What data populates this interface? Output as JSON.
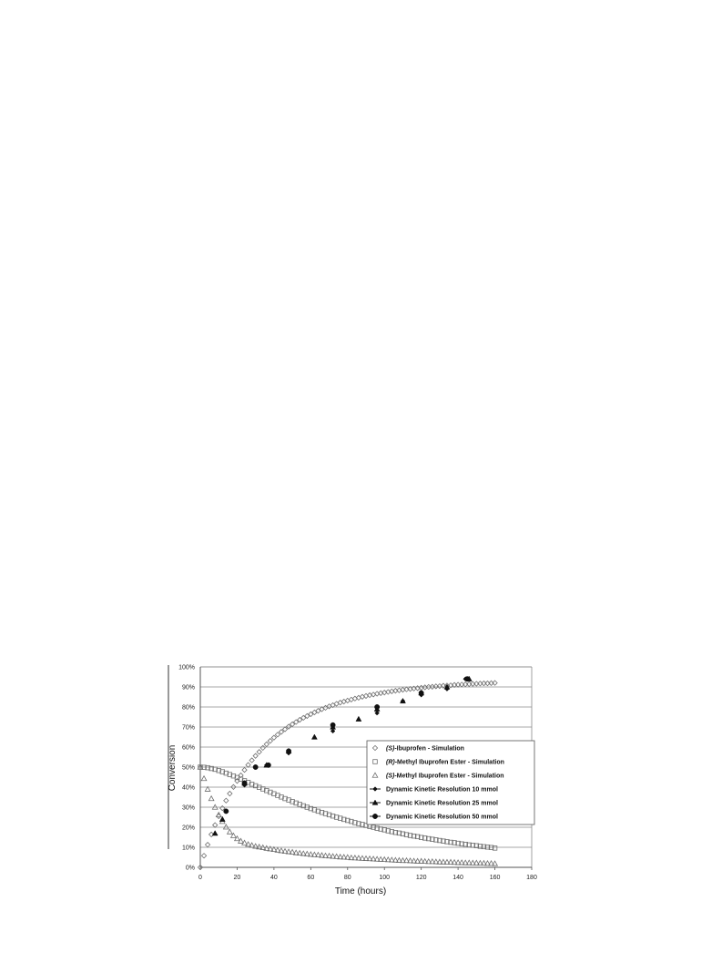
{
  "chart_data": {
    "type": "scatter",
    "xlabel": "Time (hours)",
    "ylabel": "Conversion",
    "xlim": [
      0,
      180
    ],
    "ylim": [
      0,
      100
    ],
    "x_ticks": [
      "0",
      "20",
      "40",
      "60",
      "80",
      "100",
      "120",
      "140",
      "160",
      "180"
    ],
    "y_ticks": [
      "0%",
      "10%",
      "20%",
      "30%",
      "40%",
      "50%",
      "60%",
      "70%",
      "80%",
      "90%",
      "100%"
    ],
    "grid": "horizontal",
    "legend_position": "right",
    "series": [
      {
        "name_prefix": "(S)",
        "name_suffix": "-Ibuprofen - Simulation",
        "marker": "open-diamond",
        "x": [
          0,
          2,
          4,
          6,
          8,
          10,
          12,
          14,
          16,
          18,
          20,
          22,
          24,
          26,
          28,
          30,
          32,
          34,
          36,
          38,
          40,
          42,
          44,
          46,
          48,
          50,
          52,
          54,
          56,
          58,
          60,
          62,
          64,
          66,
          68,
          70,
          72,
          74,
          76,
          78,
          80,
          82,
          84,
          86,
          88,
          90,
          92,
          94,
          96,
          98,
          100,
          102,
          104,
          106,
          108,
          110,
          112,
          114,
          116,
          118,
          120,
          122,
          124,
          126,
          128,
          130,
          132,
          134,
          136,
          138,
          140,
          142,
          144,
          146,
          148,
          150,
          152,
          154,
          156,
          158,
          160
        ],
        "y": [
          0.0,
          5.8,
          11.3,
          16.4,
          21.1,
          25.5,
          29.5,
          33.3,
          36.8,
          40.1,
          43.1,
          45.9,
          48.6,
          51.1,
          53.4,
          55.6,
          57.6,
          59.6,
          61.4,
          63.1,
          64.7,
          66.2,
          67.6,
          68.9,
          70.2,
          71.4,
          72.5,
          73.6,
          74.6,
          75.5,
          76.4,
          77.3,
          78.1,
          78.9,
          79.6,
          80.3,
          80.9,
          81.6,
          82.2,
          82.7,
          83.2,
          83.7,
          84.2,
          84.6,
          85.1,
          85.5,
          85.9,
          86.2,
          86.6,
          86.9,
          87.2,
          87.5,
          87.8,
          88.1,
          88.3,
          88.6,
          88.8,
          89.0,
          89.2,
          89.4,
          89.6,
          89.8,
          90.0,
          90.1,
          90.3,
          90.4,
          90.6,
          90.7,
          90.8,
          91.0,
          91.1,
          91.2,
          91.3,
          91.4,
          91.5,
          91.6,
          91.7,
          91.8,
          91.8,
          91.9,
          92.0
        ]
      },
      {
        "name_prefix": "(R)",
        "name_suffix": "-Methyl Ibuprofen Ester - Simulation",
        "marker": "open-square",
        "x": [
          0,
          2,
          4,
          6,
          8,
          10,
          12,
          14,
          16,
          18,
          20,
          22,
          24,
          26,
          28,
          30,
          32,
          34,
          36,
          38,
          40,
          42,
          44,
          46,
          48,
          50,
          52,
          54,
          56,
          58,
          60,
          62,
          64,
          66,
          68,
          70,
          72,
          74,
          76,
          78,
          80,
          82,
          84,
          86,
          88,
          90,
          92,
          94,
          96,
          98,
          100,
          102,
          104,
          106,
          108,
          110,
          112,
          114,
          116,
          118,
          120,
          122,
          124,
          126,
          128,
          130,
          132,
          134,
          136,
          138,
          140,
          142,
          144,
          146,
          148,
          150,
          152,
          154,
          156,
          158,
          160
        ],
        "y": [
          50.0,
          49.9,
          49.7,
          49.3,
          48.9,
          48.3,
          47.7,
          47.0,
          46.3,
          45.6,
          44.8,
          44.0,
          43.2,
          42.4,
          41.5,
          40.7,
          39.9,
          39.1,
          38.3,
          37.5,
          36.7,
          35.9,
          35.1,
          34.3,
          33.6,
          32.8,
          32.1,
          31.4,
          30.7,
          30.0,
          29.3,
          28.7,
          28.0,
          27.4,
          26.8,
          26.2,
          25.6,
          25.0,
          24.5,
          23.9,
          23.4,
          22.9,
          22.3,
          21.8,
          21.4,
          20.9,
          20.4,
          20.0,
          19.5,
          19.1,
          18.7,
          18.2,
          17.8,
          17.4,
          17.1,
          16.7,
          16.3,
          15.9,
          15.6,
          15.3,
          14.9,
          14.6,
          14.3,
          14.0,
          13.7,
          13.4,
          13.1,
          12.8,
          12.5,
          12.3,
          12.0,
          11.7,
          11.5,
          11.2,
          11.0,
          10.8,
          10.5,
          10.3,
          10.1,
          9.9,
          9.6
        ]
      },
      {
        "name_prefix": "(S)",
        "name_suffix": "-Methyl Ibuprofen Ester - Simulation",
        "marker": "open-triangle",
        "x": [
          0,
          2,
          4,
          6,
          8,
          10,
          12,
          14,
          16,
          18,
          20,
          22,
          24,
          26,
          28,
          30,
          32,
          34,
          36,
          38,
          40,
          42,
          44,
          46,
          48,
          50,
          52,
          54,
          56,
          58,
          60,
          62,
          64,
          66,
          68,
          70,
          72,
          74,
          76,
          78,
          80,
          82,
          84,
          86,
          88,
          90,
          92,
          94,
          96,
          98,
          100,
          102,
          104,
          106,
          108,
          110,
          112,
          114,
          116,
          118,
          120,
          122,
          124,
          126,
          128,
          130,
          132,
          134,
          136,
          138,
          140,
          142,
          144,
          146,
          148,
          150,
          152,
          154,
          156,
          158,
          160
        ],
        "y": [
          50.0,
          44.3,
          39.0,
          34.3,
          30.0,
          26.2,
          22.9,
          20.1,
          17.7,
          15.8,
          14.3,
          13.1,
          12.2,
          11.5,
          11.0,
          10.5,
          10.2,
          9.9,
          9.5,
          9.2,
          8.9,
          8.6,
          8.3,
          8.0,
          7.8,
          7.6,
          7.3,
          7.1,
          6.9,
          6.7,
          6.5,
          6.3,
          6.2,
          6.0,
          5.8,
          5.7,
          5.5,
          5.4,
          5.2,
          5.1,
          5.0,
          4.8,
          4.7,
          4.6,
          4.5,
          4.4,
          4.3,
          4.2,
          4.1,
          4.0,
          3.9,
          3.8,
          3.7,
          3.6,
          3.5,
          3.4,
          3.4,
          3.3,
          3.2,
          3.1,
          3.1,
          3.0,
          2.9,
          2.9,
          2.8,
          2.7,
          2.7,
          2.6,
          2.6,
          2.5,
          2.4,
          2.4,
          2.3,
          2.3,
          2.2,
          2.2,
          2.1,
          2.1,
          2.0,
          2.0,
          1.9
        ]
      },
      {
        "name": "Dynamic Kinetic Resolution 10 mmol",
        "marker": "filled-diamond",
        "x": [
          24,
          30,
          36,
          48,
          72,
          96,
          110,
          120,
          134,
          144
        ],
        "y": [
          41,
          50,
          51,
          57,
          68,
          77,
          83,
          86,
          89,
          94
        ]
      },
      {
        "name": "Dynamic Kinetic Resolution 25 mmol",
        "marker": "filled-triangle",
        "x": [
          8,
          12,
          24,
          36,
          48,
          62,
          72,
          86,
          96,
          110,
          120,
          134,
          146
        ],
        "y": [
          17,
          24,
          42,
          51,
          58,
          65,
          70,
          74,
          79,
          83,
          87,
          90,
          94
        ]
      },
      {
        "name": "Dynamic Kinetic Resolution 50 mmol",
        "marker": "filled-circle",
        "x": [
          14,
          24,
          30,
          37,
          48,
          72,
          96,
          120,
          145
        ],
        "y": [
          28,
          42,
          50,
          51,
          58,
          71,
          80,
          87,
          94
        ]
      }
    ]
  }
}
